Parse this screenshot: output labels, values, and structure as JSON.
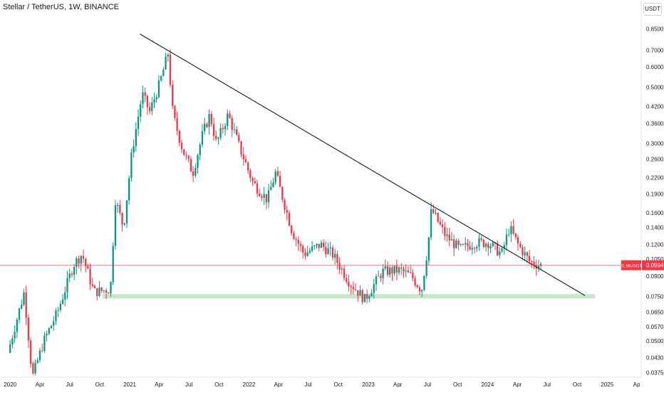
{
  "header": {
    "title": "Stellar / TetherUS, 1W, BINANCE",
    "unit_button": "USDT"
  },
  "price_tag": {
    "symbol": "XLMUSDT",
    "value": "0.0994",
    "color": "#f23645"
  },
  "colors": {
    "up": "#089981",
    "down": "#f23645",
    "trendline": "#131722",
    "support_zone": "#c8e6c9",
    "current_price_line": "#f23645"
  },
  "chart_data": {
    "type": "candlestick",
    "title": "Stellar / TetherUS, 1W, BINANCE",
    "y_scale": "log",
    "ylim": [
      0.036,
      0.92
    ],
    "xlim": [
      "2019-12-01",
      "2025-04-15"
    ],
    "y_ticks": [
      "0.8500",
      "0.7000",
      "0.6000",
      "0.5000",
      "0.4200",
      "0.3600",
      "0.3000",
      "0.2600",
      "0.2200",
      "0.1900",
      "0.1600",
      "0.1400",
      "0.1200",
      "0.1050",
      "0.0900",
      "0.0750",
      "0.0650",
      "0.0570",
      "0.0500",
      "0.0430",
      "0.0375"
    ],
    "x_ticks": [
      {
        "label": "2020",
        "date": "2020-01-01"
      },
      {
        "label": "Apr",
        "date": "2020-04-01"
      },
      {
        "label": "Jul",
        "date": "2020-07-01"
      },
      {
        "label": "Oct",
        "date": "2020-10-01"
      },
      {
        "label": "2021",
        "date": "2021-01-01"
      },
      {
        "label": "Apr",
        "date": "2021-04-01"
      },
      {
        "label": "Jul",
        "date": "2021-07-01"
      },
      {
        "label": "Oct",
        "date": "2021-10-01"
      },
      {
        "label": "2022",
        "date": "2022-01-01"
      },
      {
        "label": "Apr",
        "date": "2022-04-01"
      },
      {
        "label": "Jul",
        "date": "2022-07-01"
      },
      {
        "label": "Oct",
        "date": "2022-10-01"
      },
      {
        "label": "2023",
        "date": "2023-01-01"
      },
      {
        "label": "Apr",
        "date": "2023-04-01"
      },
      {
        "label": "Jul",
        "date": "2023-07-01"
      },
      {
        "label": "Oct",
        "date": "2023-10-01"
      },
      {
        "label": "2024",
        "date": "2024-01-01"
      },
      {
        "label": "Apr",
        "date": "2024-04-01"
      },
      {
        "label": "Jul",
        "date": "2024-07-01"
      },
      {
        "label": "Oct",
        "date": "2024-10-01"
      },
      {
        "label": "2025",
        "date": "2025-01-01"
      },
      {
        "label": "Ap",
        "date": "2025-04-01"
      }
    ],
    "grid": false,
    "current_price": 0.0994,
    "support_zone": {
      "from": "2020-10-10",
      "to": "2024-11-25",
      "low": 0.0735,
      "high": 0.0765
    },
    "trendline": [
      {
        "date": "2021-02-01",
        "price": 0.81
      },
      {
        "date": "2024-10-25",
        "price": 0.0755
      }
    ],
    "price_anchors": [
      [
        "2020-01-01",
        0.045
      ],
      [
        "2020-02-20",
        0.078
      ],
      [
        "2020-03-16",
        0.036
      ],
      [
        "2020-04-20",
        0.05
      ],
      [
        "2020-06-01",
        0.065
      ],
      [
        "2020-07-20",
        0.1
      ],
      [
        "2020-08-15",
        0.11
      ],
      [
        "2020-09-20",
        0.078
      ],
      [
        "2020-11-10",
        0.08
      ],
      [
        "2020-11-25",
        0.18
      ],
      [
        "2020-12-20",
        0.14
      ],
      [
        "2021-01-15",
        0.28
      ],
      [
        "2021-02-15",
        0.47
      ],
      [
        "2021-03-10",
        0.4
      ],
      [
        "2021-04-10",
        0.52
      ],
      [
        "2021-05-05",
        0.68
      ],
      [
        "2021-05-20",
        0.39
      ],
      [
        "2021-06-20",
        0.28
      ],
      [
        "2021-07-20",
        0.23
      ],
      [
        "2021-08-20",
        0.33
      ],
      [
        "2021-09-10",
        0.39
      ],
      [
        "2021-09-30",
        0.3
      ],
      [
        "2021-11-05",
        0.39
      ],
      [
        "2021-12-10",
        0.29
      ],
      [
        "2022-01-20",
        0.21
      ],
      [
        "2022-03-05",
        0.18
      ],
      [
        "2022-03-30",
        0.23
      ],
      [
        "2022-05-20",
        0.135
      ],
      [
        "2022-06-25",
        0.11
      ],
      [
        "2022-08-15",
        0.12
      ],
      [
        "2022-09-20",
        0.11
      ],
      [
        "2022-11-12",
        0.085
      ],
      [
        "2022-12-28",
        0.073
      ],
      [
        "2023-02-20",
        0.094
      ],
      [
        "2023-04-15",
        0.095
      ],
      [
        "2023-05-20",
        0.09
      ],
      [
        "2023-06-20",
        0.079
      ],
      [
        "2023-07-10",
        0.12
      ],
      [
        "2023-07-20",
        0.165
      ],
      [
        "2023-09-01",
        0.13
      ],
      [
        "2023-10-15",
        0.115
      ],
      [
        "2023-12-01",
        0.122
      ],
      [
        "2024-01-10",
        0.122
      ],
      [
        "2024-02-20",
        0.11
      ],
      [
        "2024-03-15",
        0.14
      ],
      [
        "2024-04-10",
        0.12
      ],
      [
        "2024-05-15",
        0.103
      ],
      [
        "2024-06-15",
        0.0994
      ]
    ]
  }
}
